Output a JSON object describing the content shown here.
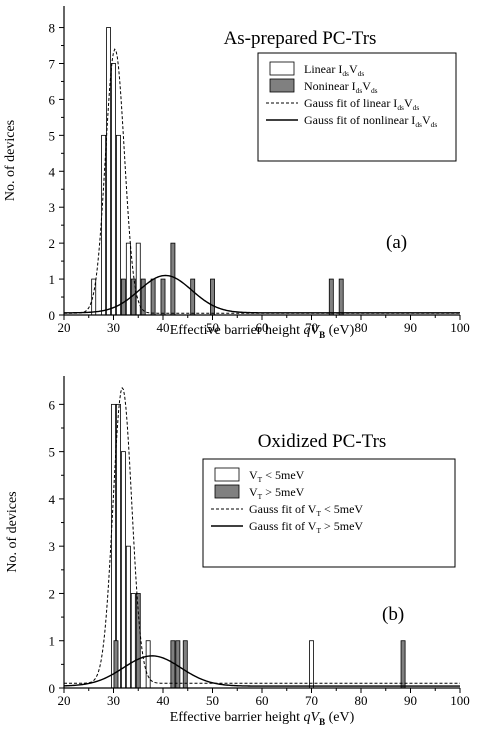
{
  "chart_data": [
    {
      "type": "bar",
      "title": "As-prepared PC-Trs",
      "panel_label": "(a)",
      "xlabel_prefix": "Effective barrier height ",
      "xlabel_var": "qV",
      "xlabel_sub": "B",
      "xlabel_unit": " (eV)",
      "ylabel": "No. of devices",
      "xlim": [
        20,
        100
      ],
      "ylim": [
        0,
        8.6
      ],
      "xticks": [
        20,
        30,
        40,
        50,
        60,
        70,
        80,
        90,
        100
      ],
      "yticks": [
        0,
        1,
        2,
        3,
        4,
        5,
        6,
        7,
        8
      ],
      "grid": false,
      "legend_position": "top-right",
      "series": [
        {
          "key": "linear",
          "legend": [
            "Linear I",
            "ds",
            "V",
            "ds",
            ""
          ],
          "style": "bar-white",
          "bars": [
            [
              26,
              1
            ],
            [
              28,
              5
            ],
            [
              29,
              8
            ],
            [
              30,
              7
            ],
            [
              31,
              5
            ],
            [
              33,
              2
            ],
            [
              35,
              2
            ]
          ]
        },
        {
          "key": "nonlinear",
          "legend": [
            "Noninear I",
            "ds",
            "V",
            "ds",
            ""
          ],
          "style": "bar-gray",
          "bars": [
            [
              32,
              1
            ],
            [
              34,
              1
            ],
            [
              36,
              1
            ],
            [
              38,
              1
            ],
            [
              40,
              1
            ],
            [
              42,
              2
            ],
            [
              46,
              1
            ],
            [
              50,
              1
            ],
            [
              74,
              1
            ],
            [
              76,
              1
            ]
          ]
        },
        {
          "key": "gauss_linear",
          "legend": [
            "Gauss fit of linear I",
            "ds",
            "V",
            "ds",
            ""
          ],
          "style": "dashed",
          "gauss": {
            "base": 0.05,
            "amp": 7.35,
            "center": 30.3,
            "sigma": 1.9
          }
        },
        {
          "key": "gauss_nonlinear",
          "legend": [
            "Gauss fit of nonlinear I",
            "ds",
            "V",
            "ds",
            ""
          ],
          "style": "solid",
          "gauss": {
            "base": 0.06,
            "amp": 1.04,
            "center": 40.5,
            "sigma": 5.3
          }
        }
      ]
    },
    {
      "type": "bar",
      "title": "Oxidized PC-Trs",
      "panel_label": "(b)",
      "xlabel_prefix": "Effective barrier height ",
      "xlabel_var": "qV",
      "xlabel_sub": "B",
      "xlabel_unit": " (eV)",
      "ylabel": "No. of devices",
      "xlim": [
        20,
        100
      ],
      "ylim": [
        0,
        6.6
      ],
      "xticks": [
        20,
        30,
        40,
        50,
        60,
        70,
        80,
        90,
        100
      ],
      "yticks": [
        0,
        1,
        2,
        3,
        4,
        5,
        6
      ],
      "grid": false,
      "legend_position": "top-right",
      "series": [
        {
          "key": "vt_low",
          "legend": [
            "V",
            "T",
            " < 5meV",
            "",
            ""
          ],
          "style": "bar-white",
          "bars": [
            [
              30,
              6
            ],
            [
              31,
              6
            ],
            [
              32,
              5
            ],
            [
              33,
              3
            ],
            [
              34,
              2
            ],
            [
              37,
              1
            ],
            [
              70,
              1
            ]
          ]
        },
        {
          "key": "vt_high",
          "legend": [
            "V",
            "T",
            " > 5meV",
            "",
            ""
          ],
          "style": "bar-gray",
          "bars": [
            [
              30.5,
              1
            ],
            [
              35,
              2
            ],
            [
              42,
              1
            ],
            [
              43,
              1
            ],
            [
              44.5,
              1
            ],
            [
              88.5,
              1
            ]
          ]
        },
        {
          "key": "gauss_low",
          "legend": [
            "Gauss fit of V",
            "T",
            " < 5meV",
            "",
            ""
          ],
          "style": "dashed",
          "gauss": {
            "base": 0.1,
            "amp": 6.25,
            "center": 31.8,
            "sigma": 1.9
          }
        },
        {
          "key": "gauss_high",
          "legend": [
            "Gauss fit of V",
            "T",
            " > 5meV",
            "",
            ""
          ],
          "style": "solid",
          "gauss": {
            "base": 0.04,
            "amp": 0.64,
            "center": 37.8,
            "sigma": 5.8
          }
        }
      ]
    }
  ]
}
